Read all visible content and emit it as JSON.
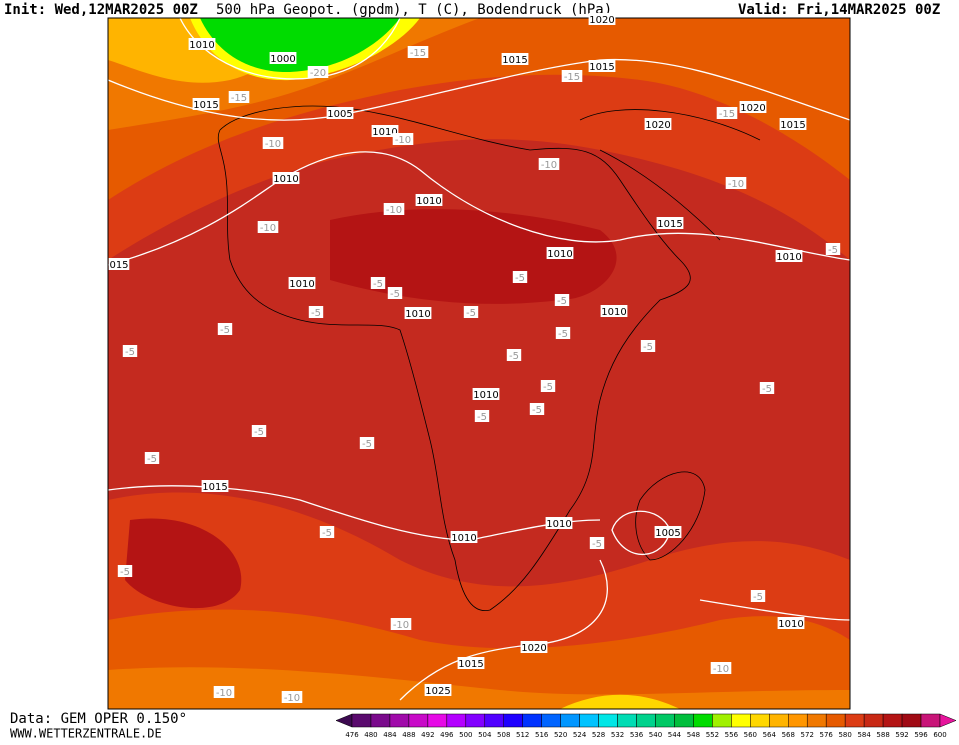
{
  "header": {
    "init": "Init: Wed,12MAR2025 00Z",
    "title": "500 hPa Geopot. (gpdm), T (C), Bodendruck (hPa)",
    "valid": "Valid: Fri,14MAR2025 00Z"
  },
  "footer": {
    "data": "Data: GEM OPER 0.150°",
    "site": "WWW.WETTERZENTRALE.DE"
  },
  "map": {
    "isobar_labels": [
      "1010",
      "1000",
      "1015",
      "1015",
      "1015",
      "1005",
      "1010",
      "1020",
      "1020",
      "1015",
      "1010",
      "1010",
      "1015",
      "1010",
      "1010",
      "015",
      "1010",
      "1010",
      "1010",
      "1010",
      "1015",
      "1010",
      "1010",
      "1005",
      "1010",
      "1020",
      "1015",
      "1025",
      "1020"
    ],
    "temperature_labels": [
      "-15",
      "-20",
      "-15",
      "-15",
      "-15",
      "-10",
      "-10",
      "-10",
      "-10",
      "-10",
      "-10",
      "-5",
      "-5",
      "-5",
      "-5",
      "-5",
      "-5",
      "-5",
      "-5",
      "-5",
      "-5",
      "-5",
      "-5",
      "-5",
      "-5",
      "-5",
      "-5",
      "-5",
      "-5",
      "-5",
      "-5",
      "-5",
      "-5",
      "-5",
      "-10",
      "-10",
      "-10",
      "-10"
    ]
  },
  "colorbar": {
    "labels": [
      "476",
      "480",
      "484",
      "488",
      "492",
      "496",
      "500",
      "504",
      "508",
      "512",
      "516",
      "520",
      "524",
      "528",
      "532",
      "536",
      "540",
      "544",
      "548",
      "552",
      "556",
      "560",
      "564",
      "568",
      "572",
      "576",
      "580",
      "584",
      "588",
      "592",
      "596",
      "600"
    ],
    "colors": [
      "#3c0a50",
      "#5a0a6e",
      "#7a0a8c",
      "#a00aaa",
      "#c80ac8",
      "#e60ae6",
      "#b400ff",
      "#8200ff",
      "#5000ff",
      "#1e00ff",
      "#0032ff",
      "#0064ff",
      "#0096ff",
      "#00c3ff",
      "#00e6e6",
      "#00dcb4",
      "#00d28c",
      "#00c864",
      "#00be3c",
      "#00dc00",
      "#a0f000",
      "#ffff00",
      "#ffd700",
      "#ffb400",
      "#ff9600",
      "#f07800",
      "#e65a00",
      "#dc3c14",
      "#c82814",
      "#b41414",
      "#a00a14",
      "#c81478",
      "#e6149c"
    ]
  }
}
